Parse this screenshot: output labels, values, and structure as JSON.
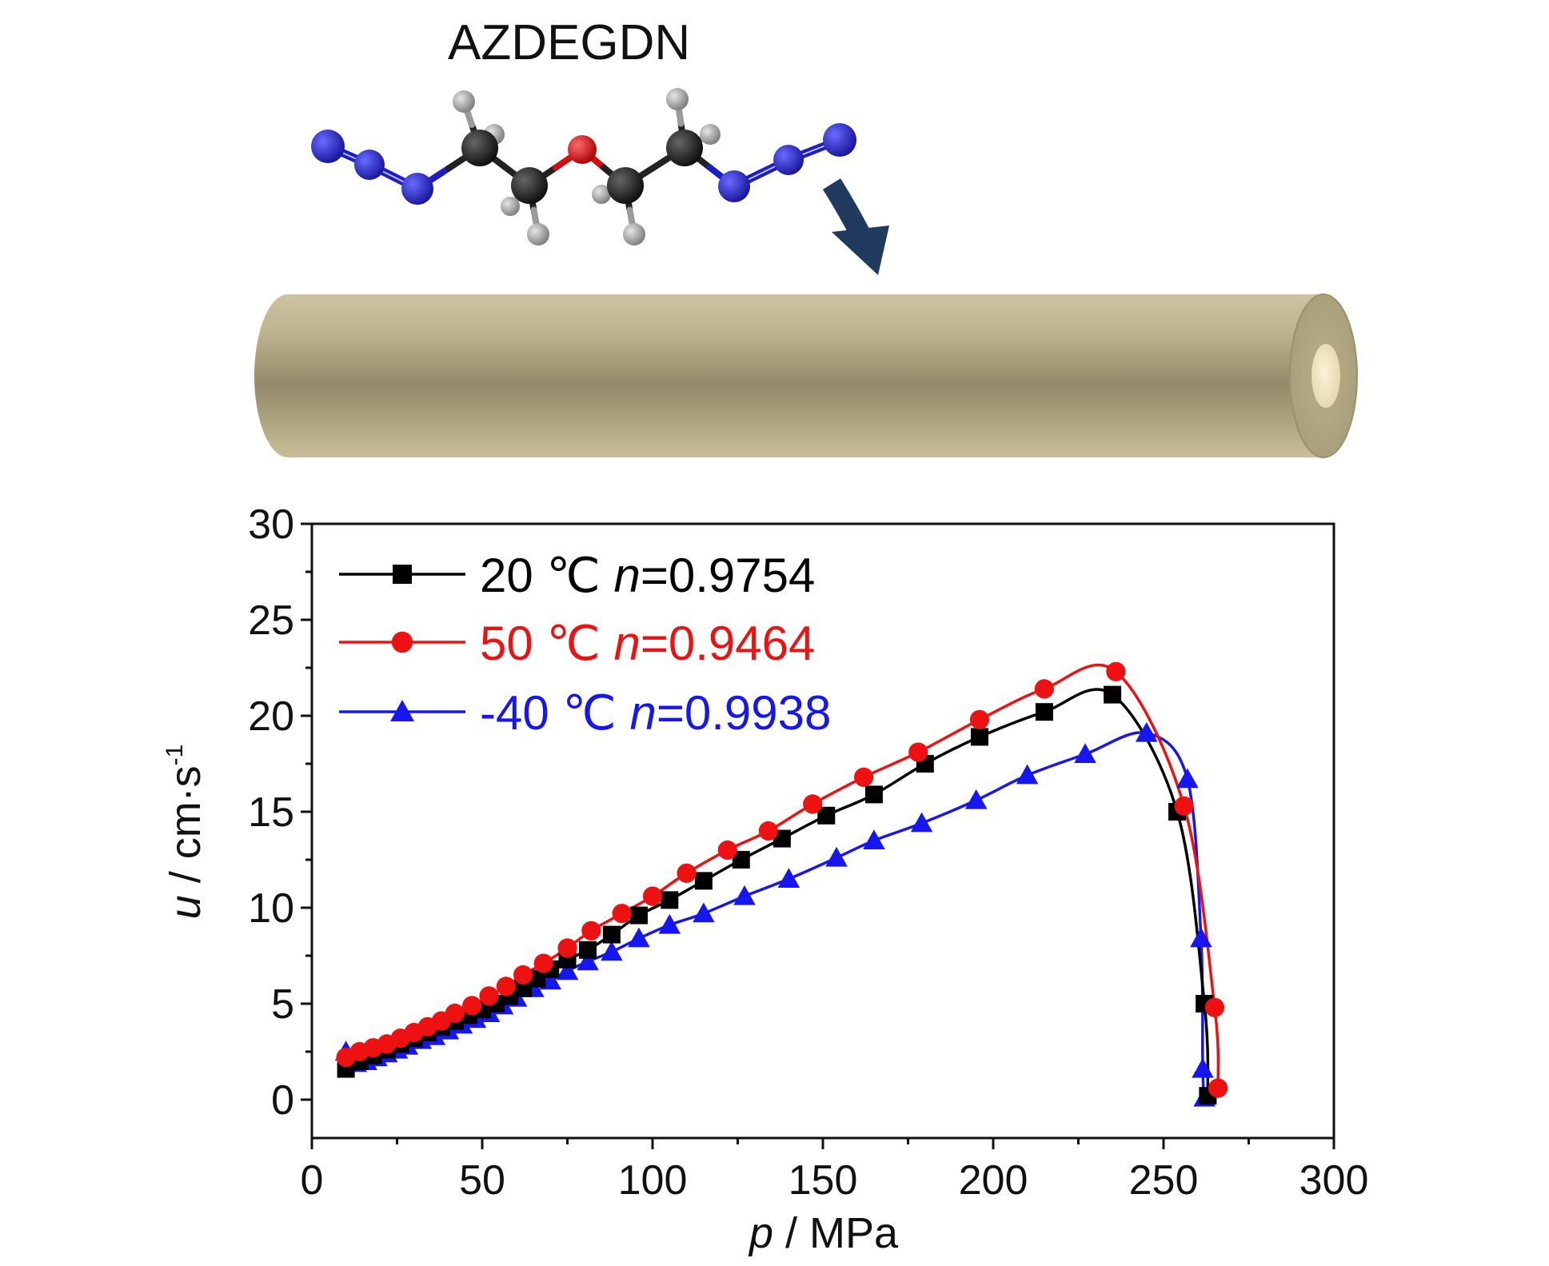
{
  "molecule": {
    "label": "AZDEGDN",
    "atom_colors": {
      "nitrogen": "#1c1cc8",
      "carbon": "#1a1a1a",
      "oxygen": "#d01010",
      "hydrogen": "#9a9a9a"
    }
  },
  "arrow": {
    "icon": "curved-down-arrow-icon",
    "color": "#1f3a5c"
  },
  "cylinder": {
    "color": "#c9bf9c",
    "shade": "#8f8566",
    "core": "#f1e7c3"
  },
  "chart_data": {
    "type": "line",
    "xlabel_italic": "p",
    "xlabel_rest": " / MPa",
    "ylabel_italic": "u",
    "ylabel_rest": " / cm·s",
    "ylabel_sup": "-1",
    "xlim": [
      0,
      300
    ],
    "ylim": [
      -2,
      30
    ],
    "xticks": [
      0,
      50,
      100,
      150,
      200,
      250,
      300
    ],
    "yticks": [
      0,
      5,
      10,
      15,
      20,
      25,
      30
    ],
    "grid": false,
    "legend_position": "top-left",
    "series": [
      {
        "name": "20 ℃ ",
        "name_n": "n",
        "name_value": "=0.9754",
        "color": "#000000",
        "marker": "square",
        "x": [
          10,
          14,
          18,
          22,
          26,
          30,
          34,
          38,
          42,
          46,
          50,
          54,
          58,
          62,
          66,
          70,
          75,
          81,
          88,
          96,
          105,
          115,
          126,
          138,
          151,
          165,
          180,
          196,
          215,
          235,
          254,
          262,
          263
        ],
        "y": [
          1.6,
          2.0,
          2.3,
          2.6,
          2.9,
          3.2,
          3.5,
          3.8,
          4.1,
          4.4,
          4.7,
          5.0,
          5.4,
          5.8,
          6.3,
          6.8,
          7.3,
          7.8,
          8.6,
          9.6,
          10.4,
          11.4,
          12.5,
          13.6,
          14.8,
          15.9,
          17.5,
          18.9,
          20.2,
          21.1,
          15.0,
          5.0,
          0.2
        ]
      },
      {
        "name": "50 ℃ ",
        "name_n": "n",
        "name_value": "=0.9464",
        "color": "#ee1111",
        "marker": "circle",
        "x": [
          10,
          14,
          18,
          22,
          26,
          30,
          34,
          38,
          42,
          47,
          52,
          57,
          62,
          68,
          75,
          82,
          91,
          100,
          110,
          122,
          134,
          147,
          162,
          178,
          196,
          215,
          236,
          256,
          265,
          266
        ],
        "y": [
          2.2,
          2.5,
          2.7,
          2.9,
          3.2,
          3.5,
          3.8,
          4.1,
          4.5,
          4.9,
          5.4,
          5.9,
          6.5,
          7.1,
          7.9,
          8.8,
          9.7,
          10.6,
          11.8,
          13.0,
          14.0,
          15.4,
          16.8,
          18.1,
          19.8,
          21.4,
          22.3,
          15.3,
          4.8,
          0.6
        ]
      },
      {
        "name": "-40 ℃ ",
        "name_n": "n",
        "name_value": "=0.9938",
        "color": "#1616f0",
        "marker": "triangle",
        "x": [
          10,
          13,
          16,
          19,
          22,
          25,
          28,
          32,
          36,
          40,
          44,
          48,
          52,
          56,
          60,
          65,
          70,
          75,
          81,
          88,
          96,
          105,
          115,
          127,
          140,
          154,
          165,
          179,
          195,
          210,
          227,
          245,
          257,
          261,
          261.5,
          262
        ],
        "y": [
          2.5,
          1.9,
          2.0,
          2.2,
          2.4,
          2.6,
          2.8,
          3.1,
          3.3,
          3.6,
          3.9,
          4.2,
          4.5,
          4.9,
          5.3,
          5.8,
          6.2,
          6.7,
          7.2,
          7.7,
          8.4,
          9.1,
          9.7,
          10.6,
          11.5,
          12.6,
          13.5,
          14.4,
          15.6,
          16.9,
          18.0,
          19.1,
          16.7,
          8.4,
          1.6,
          0.1
        ]
      }
    ]
  }
}
